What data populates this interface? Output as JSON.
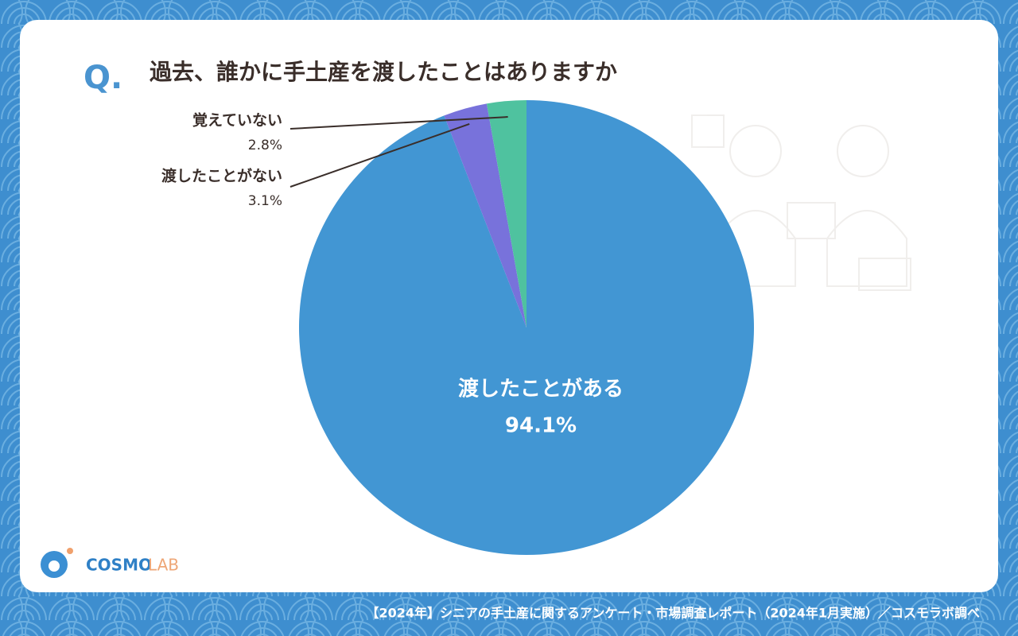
{
  "chart_data": {
    "type": "pie",
    "question_marker": "Q.",
    "title": "過去、誰かに手土産を渡したことはありますか",
    "categories": [
      "渡したことがある",
      "渡したことがない",
      "覚えていない"
    ],
    "values": [
      94.1,
      3.1,
      2.8
    ],
    "value_labels": [
      "94.1%",
      "3.1%",
      "2.8%"
    ],
    "colors": [
      "#4296d3",
      "#7872db",
      "#4fc29f"
    ],
    "start_angle": 0,
    "direction": "clockwise",
    "logo": [
      "COSMO",
      "LAB"
    ],
    "source": "【2024年】シニアの手土産に関するアンケート・市場調査レポート（2024年1月実施）／コスモラボ調べ"
  }
}
